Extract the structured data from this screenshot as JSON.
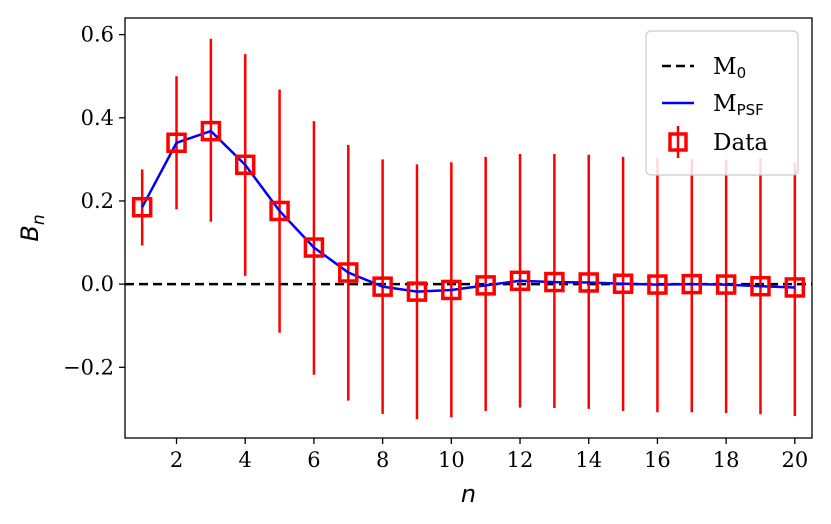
{
  "chart_data": {
    "type": "line",
    "xlabel": "n",
    "ylabel": "B_n",
    "xlim": [
      0.5,
      20.5
    ],
    "ylim": [
      -0.37,
      0.64
    ],
    "xticks": [
      2,
      4,
      6,
      8,
      10,
      12,
      14,
      16,
      18,
      20
    ],
    "yticks": [
      -0.2,
      0.0,
      0.2,
      0.4,
      0.6
    ],
    "grid": false,
    "legend_position": "top-right",
    "x": [
      1,
      2,
      3,
      4,
      5,
      6,
      7,
      8,
      9,
      10,
      11,
      12,
      13,
      14,
      15,
      16,
      17,
      18,
      19,
      20
    ],
    "series": [
      {
        "name": "M0",
        "name_main": "M",
        "name_sub": "0",
        "kind": "line",
        "style": "dashed",
        "color": "#000000",
        "value": 0.0
      },
      {
        "name": "MPSF",
        "name_main": "M",
        "name_sub": "PSF",
        "kind": "line",
        "style": "solid",
        "color": "#0000ff",
        "values": [
          0.185,
          0.34,
          0.368,
          0.287,
          0.176,
          0.088,
          0.028,
          -0.006,
          -0.018,
          -0.014,
          -0.003,
          0.008,
          0.005,
          0.004,
          0.001,
          -0.001,
          0.0,
          -0.001,
          -0.005,
          -0.008
        ]
      },
      {
        "name": "Data",
        "kind": "errorbar",
        "marker": "square",
        "color": "#ff0000",
        "values": [
          0.185,
          0.34,
          0.368,
          0.287,
          0.176,
          0.088,
          0.028,
          -0.006,
          -0.018,
          -0.014,
          -0.003,
          0.008,
          0.005,
          0.004,
          0.001,
          -0.001,
          0.0,
          -0.001,
          -0.005,
          -0.008
        ],
        "err_low": [
          0.093,
          0.18,
          0.15,
          0.02,
          -0.117,
          -0.218,
          -0.28,
          -0.312,
          -0.325,
          -0.32,
          -0.305,
          -0.297,
          -0.298,
          -0.3,
          -0.305,
          -0.308,
          -0.308,
          -0.31,
          -0.313,
          -0.317
        ],
        "err_high": [
          0.276,
          0.5,
          0.59,
          0.553,
          0.468,
          0.392,
          0.335,
          0.3,
          0.288,
          0.293,
          0.306,
          0.313,
          0.313,
          0.311,
          0.306,
          0.303,
          0.301,
          0.3,
          0.303,
          0.292
        ]
      }
    ]
  }
}
